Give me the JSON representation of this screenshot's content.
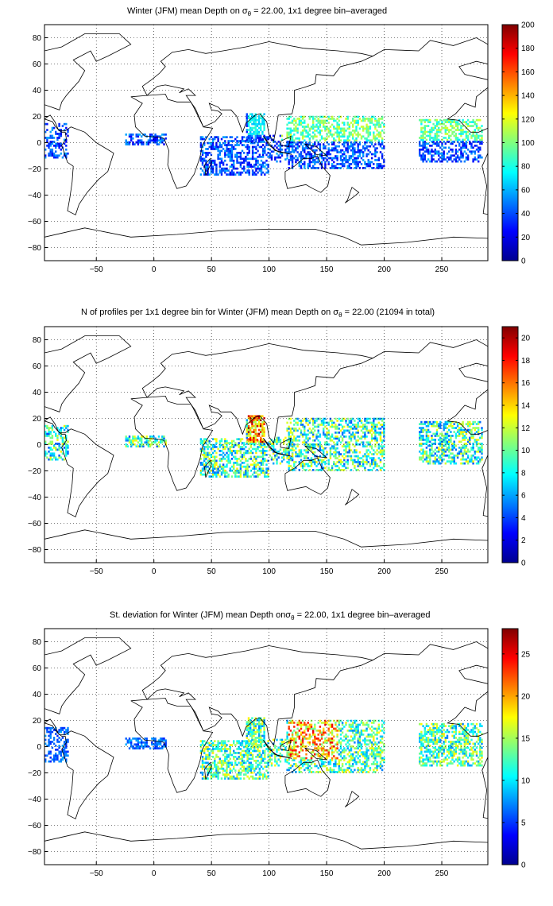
{
  "panels": [
    {
      "title_prefix": "Winter (JFM) mean Depth on σ",
      "title_sub": "θ",
      "title_suffix": " = 22.00, 1x1 degree bin–averaged",
      "colorbar": {
        "min": 0,
        "max": 200,
        "ticks": [
          0,
          20,
          40,
          60,
          80,
          100,
          120,
          140,
          160,
          180,
          200
        ]
      }
    },
    {
      "title_prefix": "N of profiles per 1x1 degree bin for Winter (JFM) mean Depth on σ",
      "title_sub": "θ",
      "title_suffix": " = 22.00 (21094 in total)",
      "colorbar": {
        "min": 0,
        "max": 21,
        "ticks": [
          0,
          2,
          4,
          6,
          8,
          10,
          12,
          14,
          16,
          18,
          20
        ]
      }
    },
    {
      "title_prefix": "St. deviation for Winter (JFM) mean Depth onσ",
      "title_sub": "θ",
      "title_suffix": " = 22.00, 1x1 degree bin–averaged",
      "colorbar": {
        "min": 0,
        "max": 28,
        "ticks": [
          0,
          5,
          10,
          15,
          20,
          25
        ]
      }
    }
  ],
  "map": {
    "x_ticks": [
      -50,
      0,
      50,
      100,
      150,
      200,
      250
    ],
    "y_ticks": [
      80,
      60,
      40,
      20,
      0,
      -20,
      -40,
      -60,
      -80
    ],
    "x_range": [
      -95,
      290
    ],
    "y_range": [
      -90,
      90
    ],
    "grid": "dotted",
    "colormap": "jet"
  }
}
